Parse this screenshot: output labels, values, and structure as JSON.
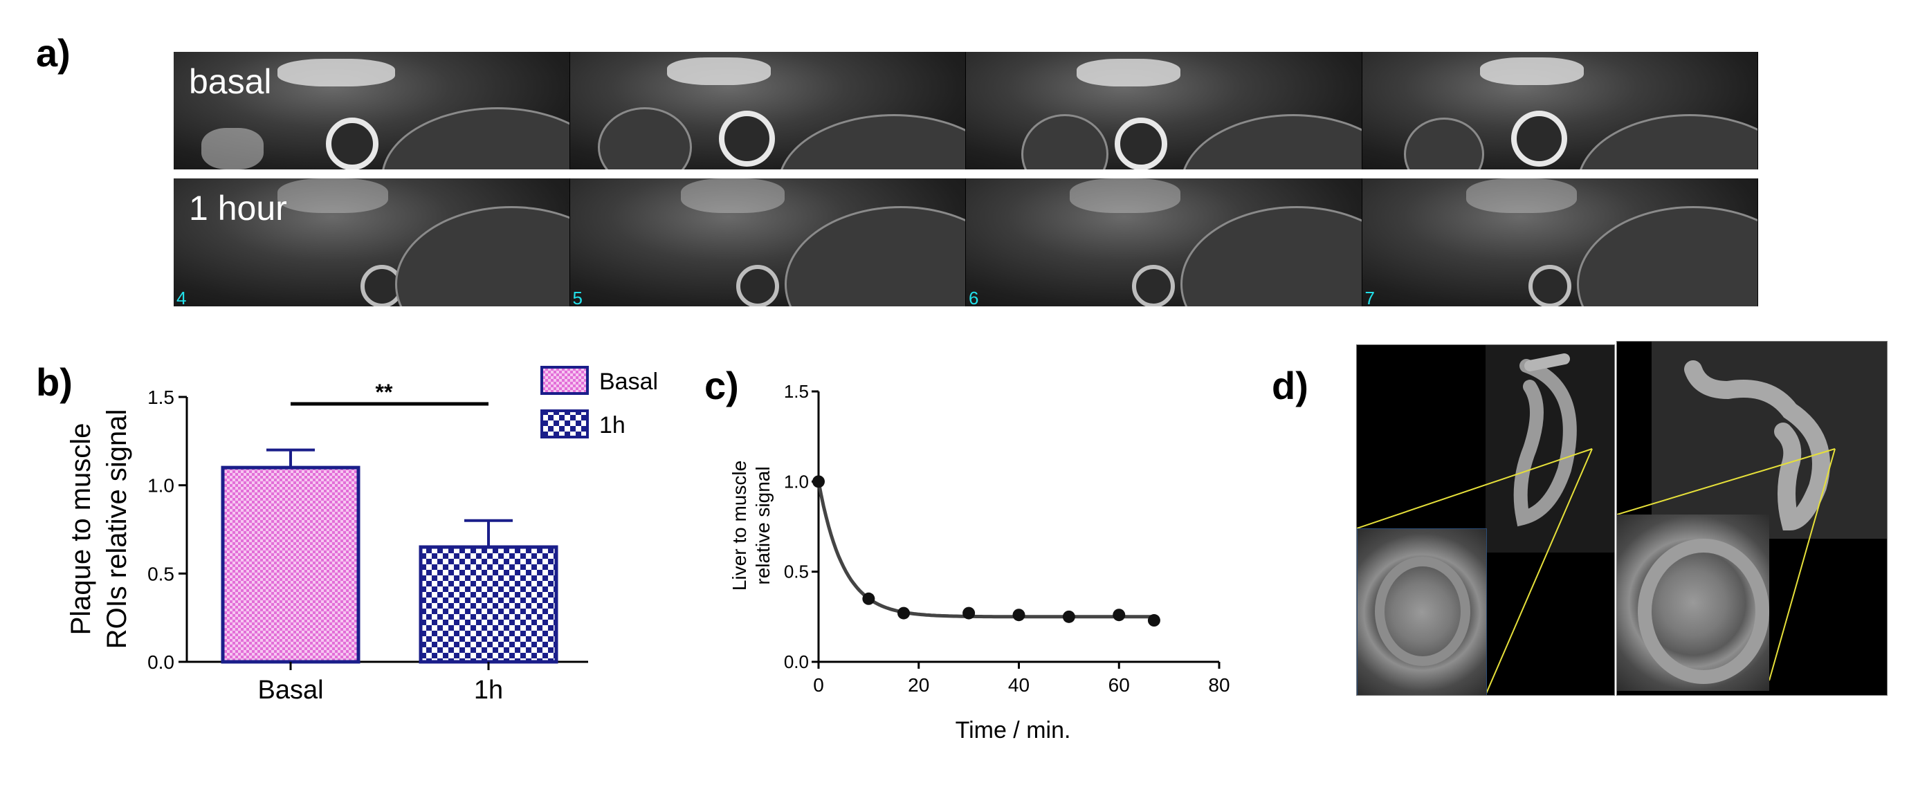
{
  "panels": {
    "a": "a)",
    "b": "b)",
    "c": "c)",
    "d": "d)"
  },
  "panel_a": {
    "row_labels": [
      "basal",
      "1 hour"
    ],
    "slice_numbers": [
      "4",
      "5",
      "6",
      "7"
    ]
  },
  "chart_data": [
    {
      "type": "bar",
      "panel": "b",
      "categories": [
        "Basal",
        "1h"
      ],
      "values": [
        1.1,
        0.65
      ],
      "errors": [
        0.1,
        0.15
      ],
      "ylabel_lines": [
        "Plaque to muscle",
        "ROIs relative signal"
      ],
      "xlabel": "",
      "ylim": [
        0,
        1.5
      ],
      "yticks": [
        "0.0",
        "0.5",
        "1.0",
        "1.5"
      ],
      "legend": [
        "Basal",
        "1h"
      ],
      "legend_position": "top-right",
      "significance": "**",
      "colors": {
        "basal_fill": "#f4b8ee",
        "basal_pattern": "#e04fd6",
        "h1_fill": "#ffffff",
        "h1_pattern": "#1a1e8a",
        "edge": "#1a1e8a"
      }
    },
    {
      "type": "line",
      "panel": "c",
      "x": [
        0,
        10,
        17,
        30,
        40,
        50,
        60,
        67
      ],
      "y": [
        1.0,
        0.35,
        0.27,
        0.27,
        0.26,
        0.25,
        0.26,
        0.23
      ],
      "fit": "exponential decay",
      "xlabel": "Time / min.",
      "ylabel_lines": [
        "Liver to muscle",
        "relative signal"
      ],
      "xlim": [
        0,
        80
      ],
      "ylim": [
        0,
        1.5
      ],
      "xticks": [
        "0",
        "20",
        "40",
        "60",
        "80"
      ],
      "yticks": [
        "0.0",
        "0.5",
        "1.0",
        "1.5"
      ]
    }
  ]
}
